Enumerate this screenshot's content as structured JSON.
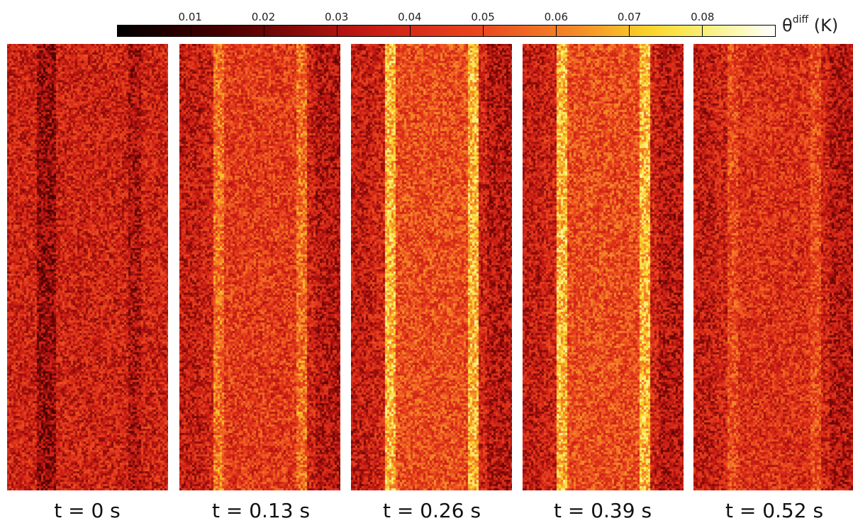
{
  "colorbar": {
    "ticks": [
      "0.01",
      "0.02",
      "0.03",
      "0.04",
      "0.05",
      "0.06",
      "0.07",
      "0.08"
    ],
    "min": 0.0,
    "max": 0.09,
    "colormap": "hot",
    "quantity_symbol": "θ",
    "quantity_superscript": "diff",
    "unit": "(K)"
  },
  "panels": [
    {
      "label": "t = 0 s",
      "band_intensity": 0.0
    },
    {
      "label": "t = 0.13 s",
      "band_intensity": 0.6
    },
    {
      "label": "t = 0.26 s",
      "band_intensity": 1.0
    },
    {
      "label": "t = 0.39 s",
      "band_intensity": 1.0
    },
    {
      "label": "t = 0.52 s",
      "band_intensity": 0.35
    }
  ],
  "colors": {
    "background": "#ffffff",
    "dark": "#3a0000",
    "red": "#d42a1b",
    "orange": "#f0822a",
    "pale_yellow": "#fbf0a0"
  }
}
